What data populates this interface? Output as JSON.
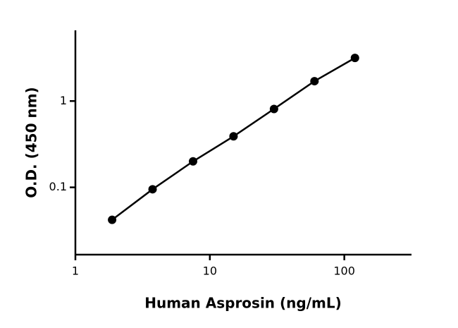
{
  "chart_data": {
    "type": "scatter",
    "x_label": "Human Asprosin (ng/mL)",
    "y_label": "O.D. (450 nm)",
    "x": [
      1.875,
      3.75,
      7.5,
      15,
      30,
      60,
      120
    ],
    "series": [
      {
        "color": "#000000",
        "values": [
          0.042,
          0.095,
          0.2,
          0.39,
          0.81,
          1.7,
          3.16
        ]
      }
    ],
    "xscale": "log",
    "yscale": "log",
    "xlim": [
      1,
      316
    ],
    "ylim": [
      0.0166,
      6.6
    ],
    "xticks": [
      1,
      10,
      100
    ],
    "yticks": [
      0.1,
      1
    ],
    "line": true,
    "grid": false
  }
}
